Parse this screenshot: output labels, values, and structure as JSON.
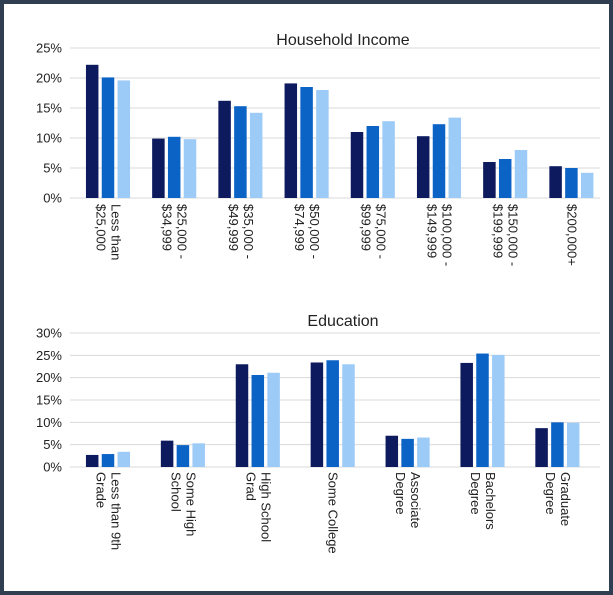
{
  "colors": {
    "frame": "#2f3e50",
    "background": "#ffffff",
    "gridline": "#d9d9d9",
    "series": [
      "#0d1b5e",
      "#0c63c6",
      "#9dcbf7"
    ]
  },
  "chart_data": [
    {
      "type": "bar",
      "title": "Household Income",
      "categories": [
        [
          "Less than",
          "$25,000"
        ],
        [
          "$25,000 -",
          "$34,999"
        ],
        [
          "$35,000 -",
          "$49,999"
        ],
        [
          "$50,000 -",
          "$74,999"
        ],
        [
          "$75,000 -",
          "$99,999"
        ],
        [
          "$100,000 -",
          "$149,999"
        ],
        [
          "$150,000 -",
          "$199,999"
        ],
        [
          "$200,000+"
        ]
      ],
      "series": [
        {
          "values": [
            22.2,
            9.9,
            16.2,
            19.1,
            11.0,
            10.3,
            6.0,
            5.3
          ]
        },
        {
          "values": [
            20.1,
            10.2,
            15.3,
            18.5,
            12.0,
            12.3,
            6.5,
            5.0
          ]
        },
        {
          "values": [
            19.6,
            9.8,
            14.2,
            18.0,
            12.8,
            13.4,
            8.0,
            4.2
          ]
        }
      ],
      "ylim": [
        0,
        25
      ],
      "yticks": [
        "0%",
        "5%",
        "10%",
        "15%",
        "20%",
        "25%"
      ],
      "grid": true,
      "category_label_rotation": 90
    },
    {
      "type": "bar",
      "title": "Education",
      "categories": [
        [
          "Less than 9th",
          "Grade"
        ],
        [
          "Some High",
          "School"
        ],
        [
          "High School",
          "Grad"
        ],
        [
          "Some College"
        ],
        [
          "Associate",
          "Degree"
        ],
        [
          "Bachelors",
          "Degree"
        ],
        [
          "Graduate",
          "Degree"
        ]
      ],
      "series": [
        {
          "values": [
            2.7,
            5.9,
            23.0,
            23.4,
            7.0,
            23.3,
            8.7
          ]
        },
        {
          "values": [
            2.9,
            4.9,
            20.6,
            23.9,
            6.3,
            25.4,
            10.0
          ]
        },
        {
          "values": [
            3.4,
            5.3,
            21.1,
            23.0,
            6.6,
            25.1,
            9.9
          ]
        }
      ],
      "ylim": [
        0,
        30
      ],
      "yticks": [
        "0%",
        "5%",
        "10%",
        "15%",
        "20%",
        "25%",
        "30%"
      ],
      "grid": true,
      "category_label_rotation": 90
    }
  ]
}
